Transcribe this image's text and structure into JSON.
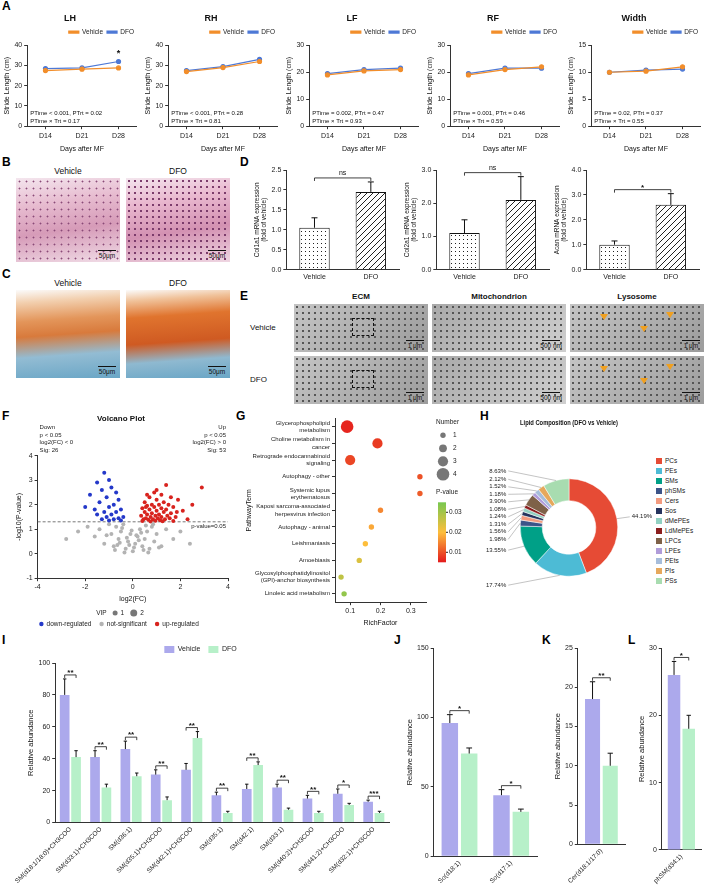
{
  "chart_data": [
    {
      "panel": "A",
      "type": "line",
      "title": "LH",
      "x_label": "Days after MF",
      "y_label": "Stride Length (cm)",
      "categories": [
        "D14",
        "D21",
        "D28"
      ],
      "series": [
        {
          "name": "Vehicle",
          "color": "#f28e2b",
          "values": [
            27.5,
            28.2,
            28.8
          ]
        },
        {
          "name": "DFO",
          "color": "#4e79d6",
          "values": [
            28.5,
            28.8,
            32.0
          ]
        }
      ],
      "ylim": [
        0,
        40
      ],
      "yticks": [
        0,
        10,
        20,
        30,
        40
      ],
      "grid": false,
      "legend": "top-right",
      "marker": "circle",
      "annotations": [
        "PTime < 0.001, PTrt = 0.02",
        "PTime × Trt = 0.17"
      ],
      "significance": [
        null,
        null,
        "*"
      ]
    },
    {
      "type": "line",
      "title": "RH",
      "x_label": "Days after MF",
      "y_label": "Stride Length (cm)",
      "categories": [
        "D14",
        "D21",
        "D28"
      ],
      "series": [
        {
          "name": "Vehicle",
          "color": "#f28e2b",
          "values": [
            27.0,
            29.0,
            32.0
          ]
        },
        {
          "name": "DFO",
          "color": "#4e79d6",
          "values": [
            27.5,
            29.5,
            33.0
          ]
        }
      ],
      "ylim": [
        0,
        40
      ],
      "yticks": [
        0,
        10,
        20,
        30,
        40
      ],
      "grid": false,
      "legend": "top-right",
      "marker": "circle",
      "annotations": [
        "PTime < 0.001, PTrt = 0.28",
        "PTime × Trt = 0.81"
      ]
    },
    {
      "type": "line",
      "title": "LF",
      "x_label": "Days after MF",
      "y_label": "Stride Length (cm)",
      "categories": [
        "D14",
        "D21",
        "D28"
      ],
      "series": [
        {
          "name": "Vehicle",
          "color": "#f28e2b",
          "values": [
            19.0,
            20.5,
            21.0
          ]
        },
        {
          "name": "DFO",
          "color": "#4e79d6",
          "values": [
            19.5,
            21.0,
            21.5
          ]
        }
      ],
      "ylim": [
        0,
        30
      ],
      "yticks": [
        0,
        10,
        20,
        30
      ],
      "grid": false,
      "legend": "top-right",
      "marker": "circle",
      "annotations": [
        "PTime = 0.002, PTrt = 0.47",
        "PTime × Trt = 0.93"
      ]
    },
    {
      "type": "line",
      "title": "RF",
      "x_label": "Days after MF",
      "y_label": "Stride Length (cm)",
      "categories": [
        "D14",
        "D21",
        "D28"
      ],
      "series": [
        {
          "name": "Vehicle",
          "color": "#f28e2b",
          "values": [
            19.0,
            21.0,
            22.0
          ]
        },
        {
          "name": "DFO",
          "color": "#4e79d6",
          "values": [
            19.5,
            21.5,
            21.5
          ]
        }
      ],
      "ylim": [
        0,
        30
      ],
      "yticks": [
        0,
        10,
        20,
        30
      ],
      "grid": false,
      "legend": "top-right",
      "marker": "circle",
      "annotations": [
        "PTime = 0.001, PTrt = 0.46",
        "PTime × Trt = 0.59"
      ]
    },
    {
      "type": "line",
      "title": "Width",
      "x_label": "Days after MF",
      "y_label": "Stride Length (cm)",
      "categories": [
        "D14",
        "D21",
        "D28"
      ],
      "series": [
        {
          "name": "Vehicle",
          "color": "#f28e2b",
          "values": [
            10.0,
            10.2,
            11.0
          ]
        },
        {
          "name": "DFO",
          "color": "#4e79d6",
          "values": [
            10.0,
            10.4,
            10.6
          ]
        }
      ],
      "ylim": [
        0,
        15
      ],
      "yticks": [
        0,
        5,
        10,
        15
      ],
      "grid": false,
      "legend": "top-right",
      "marker": "circle",
      "annotations": [
        "PTime = 0.02, PTrt = 0.37",
        "PTime × Trt = 0.55"
      ]
    },
    {
      "panel": "D",
      "type": "bar",
      "y_label": "Col1a1 mRNA expression (fold of vehicle)",
      "categories": [
        "Vehicle",
        "DFO"
      ],
      "values": [
        1.05,
        1.95
      ],
      "errors": [
        0.25,
        0.25
      ],
      "ylim": [
        0,
        2.5
      ],
      "yticks": [
        {
          "value": 0,
          "label": "0.0"
        },
        0.5,
        {
          "value": 1,
          "label": "1.0"
        },
        1.5,
        {
          "value": 2,
          "label": "2.0"
        },
        2.5
      ],
      "grid": false,
      "significance": "ns"
    },
    {
      "type": "bar",
      "y_label": "Col2a1 mRNA expression (fold of vehicle)",
      "categories": [
        "Vehicle",
        "DFO"
      ],
      "values": [
        1.1,
        2.1
      ],
      "errors": [
        0.4,
        0.7
      ],
      "ylim": [
        0,
        3
      ],
      "yticks": [
        {
          "value": 0,
          "label": "0.0"
        },
        {
          "value": 1,
          "label": "1.0"
        },
        {
          "value": 2,
          "label": "2.0"
        },
        {
          "value": 3,
          "label": "3.0"
        }
      ],
      "grid": false,
      "significance": "ns"
    },
    {
      "type": "bar",
      "y_label": "Acan mRNA expression (fold of vehicle)",
      "categories": [
        "Vehicle",
        "DFO"
      ],
      "values": [
        1.0,
        2.6
      ],
      "errors": [
        0.15,
        0.45
      ],
      "ylim": [
        0,
        4
      ],
      "yticks": [
        {
          "value": 0,
          "label": "0.0"
        },
        {
          "value": 1,
          "label": "1.0"
        },
        {
          "value": 2,
          "label": "2.0"
        },
        {
          "value": 3,
          "label": "3.0"
        },
        {
          "value": 4,
          "label": "4.0"
        }
      ],
      "grid": false,
      "significance": "*"
    },
    {
      "panel": "F",
      "type": "scatter",
      "title": "Volcano Plot",
      "x_label": "log2(FC)",
      "y_label": "-log10(P-value)",
      "series": [
        {
          "name": "down-regulated",
          "color": "#2438c9",
          "x": [
            -1.2,
            -1.0,
            -1.5,
            -0.9,
            -1.3,
            -0.7,
            -1.8,
            -1.1,
            -0.6,
            -1.4,
            -0.8,
            -2.0,
            -1.0,
            -0.5,
            -1.6,
            -1.2,
            -0.7,
            -0.9,
            -1.5,
            -0.4,
            -1.1,
            -0.6,
            -1.3,
            -0.8,
            -0.5,
            -1.0
          ],
          "values": [
            3.3,
            3.0,
            2.9,
            2.7,
            2.6,
            2.5,
            2.4,
            2.3,
            2.2,
            2.1,
            2.0,
            1.9,
            1.9,
            1.8,
            1.8,
            1.7,
            1.7,
            1.6,
            1.6,
            1.5,
            1.5,
            1.45,
            1.4,
            1.4,
            1.35,
            1.35
          ]
        },
        {
          "name": "not-significant",
          "color": "#b3b3b3",
          "x": [
            -2.8,
            -2.3,
            -1.9,
            -1.6,
            -1.4,
            -1.2,
            -1.0,
            -0.9,
            -0.8,
            -0.7,
            -0.6,
            -0.5,
            -0.4,
            -0.3,
            -0.2,
            -0.1,
            0.0,
            0.1,
            0.2,
            0.3,
            0.4,
            0.5,
            0.6,
            0.7,
            0.8,
            0.9,
            1.0,
            1.2,
            1.4,
            1.7,
            2.0,
            2.4,
            -0.35,
            -0.15,
            0.05,
            0.25,
            0.45,
            -0.55,
            -0.25,
            0.15,
            0.35,
            -0.05,
            0.65,
            -0.75,
            1.1,
            -1.1,
            0.85,
            -0.45,
            0.55,
            -0.65
          ],
          "values": [
            0.6,
            0.9,
            1.1,
            0.7,
            1.0,
            0.4,
            1.2,
            0.8,
            0.3,
            1.1,
            0.6,
            0.9,
            1.2,
            0.2,
            0.5,
            0.8,
            0.1,
            0.4,
            0.7,
            1.0,
            0.3,
            0.6,
            0.9,
            0.2,
            1.1,
            0.5,
            0.8,
            0.3,
            1.0,
            0.6,
            0.9,
            0.4,
            0.05,
            0.35,
            0.25,
            0.55,
            0.15,
            0.45,
            0.65,
            0.75,
            0.85,
            0.95,
            0.05,
            0.15,
            0.25,
            0.75,
            1.2,
            1.05,
            1.15,
            0.35
          ]
        },
        {
          "name": "up-regulated",
          "color": "#d8231e",
          "x": [
            2.9,
            1.4,
            0.9,
            1.2,
            1.6,
            0.7,
            1.0,
            1.9,
            0.5,
            1.3,
            0.8,
            1.1,
            1.5,
            0.6,
            1.7,
            0.9,
            1.2,
            0.4,
            1.4,
            0.7,
            1.0,
            2.1,
            0.5,
            1.3,
            0.8,
            1.6,
            1.1,
            0.6,
            0.95,
            1.45,
            0.35,
            1.8,
            0.75,
            1.2,
            0.55,
            1.05,
            1.55,
            0.85,
            1.35,
            0.45,
            2.3,
            0.65,
            1.15,
            0.95,
            1.7,
            0.4,
            1.25,
            0.75,
            0.55,
            1.85,
            2.5,
            1.0,
            0.6
          ],
          "values": [
            2.7,
            2.8,
            2.5,
            2.4,
            2.3,
            2.3,
            2.2,
            2.2,
            2.1,
            2.1,
            2.0,
            2.0,
            2.0,
            1.95,
            1.9,
            1.9,
            1.85,
            1.85,
            1.8,
            1.8,
            1.75,
            1.75,
            1.7,
            1.7,
            1.65,
            1.65,
            1.6,
            1.6,
            1.55,
            1.55,
            1.55,
            1.5,
            1.5,
            1.5,
            1.45,
            1.45,
            1.45,
            1.4,
            1.4,
            1.4,
            1.4,
            1.38,
            1.36,
            1.34,
            1.33,
            1.33,
            1.32,
            1.31,
            1.9,
            1.7,
            2.0,
            2.6,
            2.4
          ]
        }
      ],
      "xlim": [
        -4,
        4
      ],
      "xticks": [
        -4,
        -2,
        0,
        2,
        4
      ],
      "ylim": [
        -1,
        4
      ],
      "yticks": [
        -1,
        0,
        1,
        2,
        3,
        4
      ],
      "grid": false,
      "threshold": {
        "value": 1.3,
        "label": "p-value=0.05"
      },
      "notes": {
        "left": [
          "Down",
          "p < 0.05",
          "log2(FC) < 0",
          "Sig: 26"
        ],
        "right": [
          "Up",
          "p < 0.05",
          "log2(FC) > 0",
          "Sig: 53"
        ]
      },
      "size_legend": {
        "title": "VIP",
        "values": [
          1,
          2
        ]
      },
      "legend": "bottom"
    },
    {
      "panel": "G",
      "type": "bubble",
      "x_label": "RichFactor",
      "y_label": "PathwayTerm",
      "categories": [
        "Glycerophospholipid metabolism",
        "Choline metabolism in cancer",
        "Retrograde endocannabinoid signaling",
        "Autophagy - other",
        "Systemic lupus erythematosus",
        "Kaposi sarcoma-associated herpesvirus infection",
        "Autophagy - animal",
        "Leishmaniasis",
        "Amoebiasis",
        "Glycosylphosphatidylinositol (GPI)-anchor biosynthesis",
        "Linoleic acid metabolism"
      ],
      "values": [
        0.09,
        0.19,
        0.1,
        0.33,
        0.33,
        0.2,
        0.17,
        0.15,
        0.13,
        0.07,
        0.08
      ],
      "sizes": [
        4,
        3,
        3,
        1,
        1,
        1,
        1,
        1,
        1,
        1,
        1
      ],
      "p_values": [
        0.006,
        0.008,
        0.009,
        0.01,
        0.011,
        0.015,
        0.018,
        0.02,
        0.024,
        0.027,
        0.032
      ],
      "xlim": [
        0.05,
        0.35
      ],
      "xticks": [
        0.1,
        0.2,
        0.3
      ],
      "grid": false,
      "size_legend": {
        "title": "Number",
        "values": [
          1,
          2,
          3,
          4
        ]
      },
      "colorbar": {
        "title": "P-value",
        "range": [
          0.005,
          0.035
        ],
        "ticks": [
          0.01,
          0.02,
          0.03
        ]
      }
    },
    {
      "panel": "H",
      "type": "doughnut",
      "title": "Lipid Composition (DFO vs Vehicle)",
      "categories": [
        "PCs",
        "PEs",
        "SMs",
        "phSMs",
        "Cers",
        "Sos",
        "dMePEs",
        "LdMePEs",
        "LPCs",
        "LPEs",
        "PEts",
        "PIs",
        "PSs"
      ],
      "values": [
        44.19,
        17.74,
        13.55,
        1.98,
        1.56,
        1.31,
        1.24,
        1.08,
        3.9,
        1.18,
        1.52,
        2.12,
        8.63
      ],
      "value_labels": [
        "44.19%",
        "17.74%",
        "13.55%",
        "1.98%",
        "1.56%",
        "1.31%",
        "1.24%",
        "1.08%",
        "3.90%",
        "1.18%",
        "1.52%",
        "2.12%",
        "8.63%"
      ],
      "colors": [
        "#e64b35",
        "#4dbbd5",
        "#00a087",
        "#3c5488",
        "#f39b7f",
        "#26345e",
        "#91d1c2",
        "#8b1e1e",
        "#7e6148",
        "#b09cd9",
        "#a6bddb",
        "#e6a85c",
        "#a8dcb0"
      ],
      "data_labels": true,
      "legend": "right"
    },
    {
      "panel": "I",
      "type": "bar",
      "y_label": "Relative abundance",
      "categories": [
        "SM(d18:1/18:0)+CH3COO",
        "SM(d33:1)+CH3COO",
        "SM(d36:1)",
        "SM(d35:1)+CH3COO",
        "SM(d42:1)+CH3COO",
        "SM(d35:1)",
        "SM(d42:1)",
        "SM(d33:1)",
        "SM(d40:2)+CH3COO",
        "SM(d41:2)+CH3COO",
        "SM(d32:1)+CH3COO"
      ],
      "series": [
        {
          "name": "Vehicle",
          "color": "#aca9ec",
          "values": [
            80,
            41,
            46,
            30,
            33,
            17,
            21,
            22,
            15,
            18,
            13
          ],
          "errors": [
            10,
            4,
            5,
            3,
            4,
            2,
            3,
            2,
            2,
            3,
            1
          ]
        },
        {
          "name": "DFO",
          "color": "#b7f0c9",
          "values": [
            41,
            22,
            29,
            14,
            53,
            6,
            36,
            8,
            6,
            11,
            6
          ],
          "errors": [
            4,
            2,
            2,
            2,
            4,
            1,
            2,
            1,
            1,
            1,
            1
          ]
        }
      ],
      "ylim": [
        0,
        100
      ],
      "yticks": [
        0,
        20,
        40,
        60,
        80,
        100
      ],
      "grid": false,
      "legend": "top",
      "significance": [
        "**",
        "**",
        "**",
        "**",
        "**",
        "**",
        "**",
        "**",
        "**",
        "*",
        "***"
      ]
    },
    {
      "panel": "J",
      "type": "bar",
      "y_label": "Relative abundance",
      "categories": [
        "So(d18:1)",
        "So(d17:1)"
      ],
      "series": [
        {
          "name": "Vehicle",
          "color": "#aca9ec",
          "values": [
            96,
            44
          ],
          "errors": [
            6,
            4
          ]
        },
        {
          "name": "DFO",
          "color": "#b7f0c9",
          "values": [
            74,
            32
          ],
          "errors": [
            4,
            2
          ]
        }
      ],
      "ylim": [
        0,
        150
      ],
      "yticks": [
        0,
        50,
        100,
        150
      ],
      "grid": false,
      "significance": [
        "*",
        "*"
      ]
    },
    {
      "panel": "K",
      "type": "bar",
      "y_label": "Relative abundance",
      "categories": [
        "Cer(d18:1/17:0)"
      ],
      "series": [
        {
          "name": "Vehicle",
          "color": "#aca9ec",
          "values": [
            18.5
          ],
          "errors": [
            2.2
          ]
        },
        {
          "name": "DFO",
          "color": "#b7f0c9",
          "values": [
            10
          ],
          "errors": [
            1.6
          ]
        }
      ],
      "ylim": [
        0,
        25
      ],
      "yticks": [
        0,
        5,
        10,
        15,
        20,
        25
      ],
      "grid": false,
      "significance": [
        "**"
      ]
    },
    {
      "panel": "L",
      "type": "bar",
      "y_label": "Relative abundance",
      "categories": [
        "phSM(d34:1)"
      ],
      "series": [
        {
          "name": "Vehicle",
          "color": "#aca9ec",
          "values": [
            26
          ],
          "errors": [
            2
          ]
        },
        {
          "name": "DFO",
          "color": "#b7f0c9",
          "values": [
            18
          ],
          "errors": [
            2
          ]
        }
      ],
      "ylim": [
        0,
        30
      ],
      "yticks": [
        0,
        10,
        20,
        30
      ],
      "grid": false,
      "significance": [
        "*"
      ]
    }
  ],
  "image_panels": [
    {
      "panel": "B",
      "labels": [
        "Vehicle",
        "DFO"
      ],
      "scale_bar": "50μm"
    },
    {
      "panel": "C",
      "labels": [
        "Vehicle",
        "DFO"
      ],
      "scale_bar": "50μm"
    },
    {
      "panel": "E",
      "columns": [
        "ECM",
        "Mitochondrion",
        "Lysosome"
      ],
      "rows": [
        "Vehicle",
        "DFO"
      ],
      "scale_bars": [
        "1 μm",
        "500 nm",
        "1 μm"
      ]
    }
  ]
}
